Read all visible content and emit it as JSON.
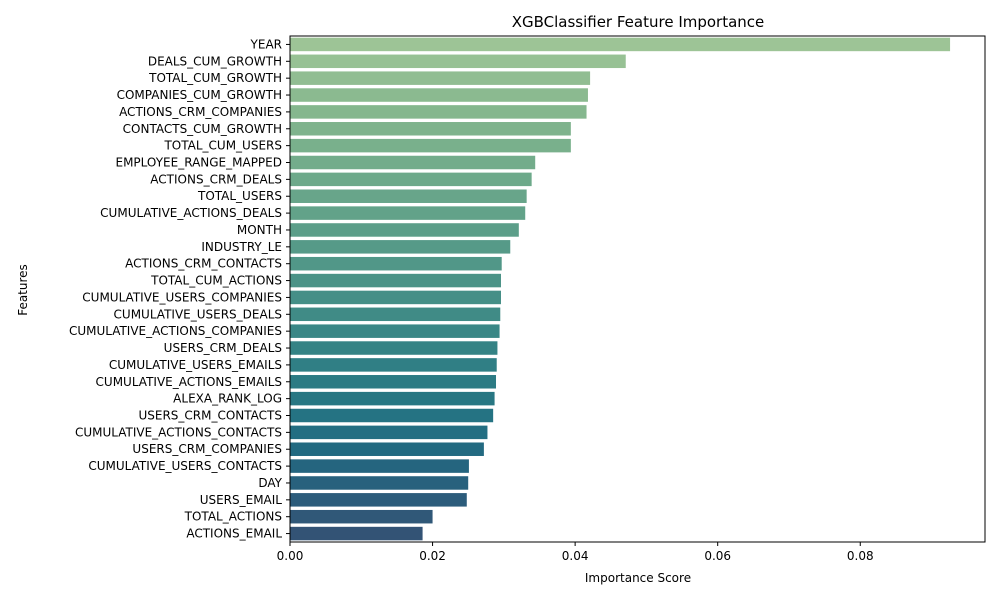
{
  "chart_data": {
    "type": "bar",
    "orientation": "horizontal",
    "title": "XGBClassifier Feature Importance",
    "xlabel": "Importance Score",
    "ylabel": "Features",
    "xlim": [
      0,
      0.0975
    ],
    "xticks": [
      0.0,
      0.02,
      0.04,
      0.06,
      0.08
    ],
    "xtick_labels": [
      "0.00",
      "0.02",
      "0.04",
      "0.06",
      "0.08"
    ],
    "grid": false,
    "palette": "crest",
    "categories": [
      "YEAR",
      "DEALS_CUM_GROWTH",
      "TOTAL_CUM_GROWTH",
      "COMPANIES_CUM_GROWTH",
      "ACTIONS_CRM_COMPANIES",
      "CONTACTS_CUM_GROWTH",
      "TOTAL_CUM_USERS",
      "EMPLOYEE_RANGE_MAPPED",
      "ACTIONS_CRM_DEALS",
      "TOTAL_USERS",
      "CUMULATIVE_ACTIONS_DEALS",
      "MONTH",
      "INDUSTRY_LE",
      "ACTIONS_CRM_CONTACTS",
      "TOTAL_CUM_ACTIONS",
      "CUMULATIVE_USERS_COMPANIES",
      "CUMULATIVE_USERS_DEALS",
      "CUMULATIVE_ACTIONS_COMPANIES",
      "USERS_CRM_DEALS",
      "CUMULATIVE_USERS_EMAILS",
      "CUMULATIVE_ACTIONS_EMAILS",
      "ALEXA_RANK_LOG",
      "USERS_CRM_CONTACTS",
      "CUMULATIVE_ACTIONS_CONTACTS",
      "USERS_CRM_COMPANIES",
      "CUMULATIVE_USERS_CONTACTS",
      "DAY",
      "USERS_EMAIL",
      "TOTAL_ACTIONS",
      "ACTIONS_EMAIL"
    ],
    "values": [
      0.0926,
      0.0471,
      0.0421,
      0.0418,
      0.0416,
      0.0394,
      0.0394,
      0.0344,
      0.0339,
      0.0332,
      0.033,
      0.0321,
      0.0309,
      0.0297,
      0.0296,
      0.0296,
      0.0295,
      0.0294,
      0.0291,
      0.029,
      0.0289,
      0.0287,
      0.0285,
      0.0277,
      0.0272,
      0.0251,
      0.025,
      0.0248,
      0.02,
      0.0186
    ],
    "colors": [
      "#9dc496",
      "#97c194",
      "#91bd92",
      "#8bba90",
      "#85b78e",
      "#7fb38d",
      "#79b08c",
      "#73ac8b",
      "#6da98a",
      "#68a58a",
      "#62a289",
      "#5c9e89",
      "#569a88",
      "#519788",
      "#4b9387",
      "#458f87",
      "#408b86",
      "#3a8786",
      "#358385",
      "#307f85",
      "#2c7b84",
      "#287783",
      "#257383",
      "#236e82",
      "#236a81",
      "#25657f",
      "#28617d",
      "#2c5c7b",
      "#305878",
      "#335375"
    ]
  }
}
